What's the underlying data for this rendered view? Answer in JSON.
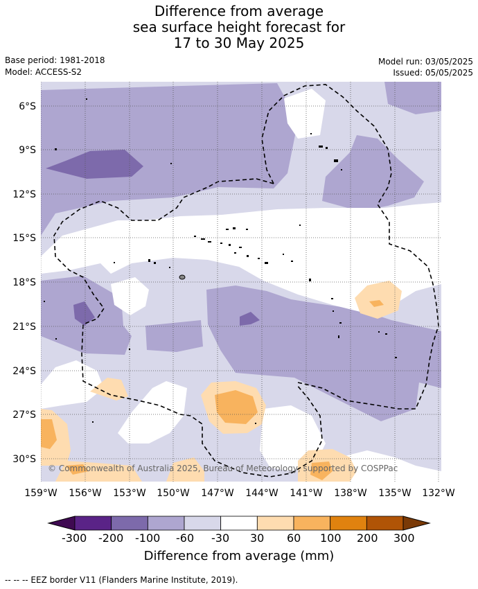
{
  "title": {
    "line1": "Difference from average",
    "line2": "sea surface height forecast for",
    "line3": "17 to 30 May 2025"
  },
  "meta": {
    "base_period": "Base period: 1981-2018",
    "model": "Model: ACCESS-S2",
    "model_run": "Model run: 03/05/2025",
    "issued": "Issued: 05/05/2025"
  },
  "map": {
    "lat_ticks": [
      "6°S",
      "9°S",
      "12°S",
      "15°S",
      "18°S",
      "21°S",
      "24°S",
      "27°S",
      "30°S"
    ],
    "lon_ticks": [
      "159°W",
      "156°W",
      "153°W",
      "150°W",
      "147°W",
      "144°W",
      "141°W",
      "138°W",
      "135°W",
      "132°W"
    ],
    "copyright": "© Commonwealth of Australia 2025, Bureau of Meteorology, supported by COSPPac"
  },
  "colorbar": {
    "labels": [
      "-300",
      "-200",
      "-100",
      "-60",
      "-30",
      "30",
      "60",
      "100",
      "200",
      "300"
    ],
    "colors": [
      "#3f0a52",
      "#5a2387",
      "#7d6aab",
      "#aea6d0",
      "#d8d8ea",
      "#ffffff",
      "#fedcb0",
      "#f8b35e",
      "#e0820f",
      "#b05406",
      "#7a3a07"
    ],
    "title": "Difference from average (mm)"
  },
  "footer": "--  --  -- EEZ border V11 (Flanders Marine Institute, 2019)."
}
